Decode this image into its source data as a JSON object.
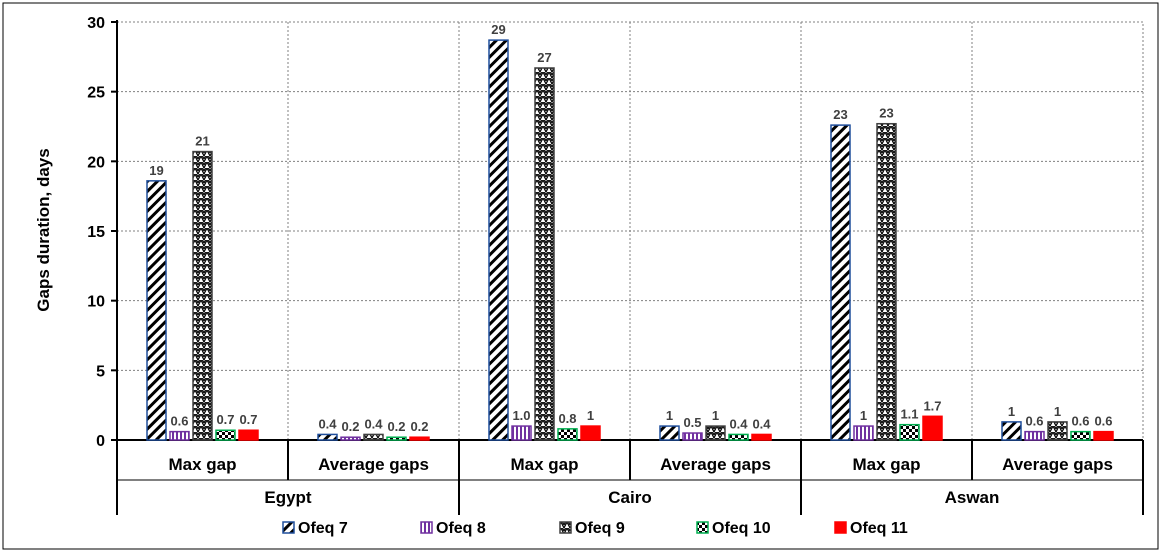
{
  "chart_data": {
    "type": "bar",
    "ylabel": "Gaps duration, days",
    "xlabel": "",
    "ylim": [
      0,
      30
    ],
    "yticks": [
      0,
      5,
      10,
      15,
      20,
      25,
      30
    ],
    "grid": true,
    "legend_position": "bottom",
    "groups": [
      {
        "name": "Egypt",
        "categories": [
          "Max gap",
          "Average gaps"
        ]
      },
      {
        "name": "Cairo",
        "categories": [
          "Max gap",
          "Average gaps"
        ]
      },
      {
        "name": "Aswan",
        "categories": [
          "Max gap",
          "Average gaps"
        ]
      }
    ],
    "categories": [
      "Egypt - Max gap",
      "Egypt - Average gaps",
      "Cairo - Max gap",
      "Cairo - Average gaps",
      "Aswan - Max gap",
      "Aswan - Average gaps"
    ],
    "series": [
      {
        "name": "Ofeq 7",
        "pattern": "diagonal-hatch",
        "color": "#1f4e9c",
        "values": [
          18.6,
          0.4,
          28.7,
          1.0,
          22.6,
          1.3
        ],
        "labels": [
          "19",
          "0.4",
          "29",
          "1",
          "23",
          "1"
        ]
      },
      {
        "name": "Ofeq 8",
        "pattern": "vertical-stripe",
        "color": "#7030a0",
        "values": [
          0.6,
          0.2,
          1.0,
          0.5,
          1.0,
          0.6
        ],
        "labels": [
          "0.6",
          "0.2",
          "1.0",
          "0.5",
          "1",
          "0.6"
        ]
      },
      {
        "name": "Ofeq 9",
        "pattern": "zigzag-hatch",
        "color": "#404040",
        "values": [
          20.7,
          0.4,
          26.7,
          1.0,
          22.7,
          1.3
        ],
        "labels": [
          "21",
          "0.4",
          "27",
          "1",
          "23",
          "1"
        ]
      },
      {
        "name": "Ofeq 10",
        "pattern": "checker",
        "color": "#00b050",
        "values": [
          0.7,
          0.2,
          0.8,
          0.4,
          1.1,
          0.6
        ],
        "labels": [
          "0.7",
          "0.2",
          "0.8",
          "0.4",
          "1.1",
          "0.6"
        ]
      },
      {
        "name": "Ofeq 11",
        "pattern": "solid",
        "color": "#ff0000",
        "values": [
          0.7,
          0.2,
          1.0,
          0.4,
          1.7,
          0.6
        ],
        "labels": [
          "0.7",
          "0.2",
          "1",
          "0.4",
          "1.7",
          "0.6"
        ]
      }
    ]
  }
}
